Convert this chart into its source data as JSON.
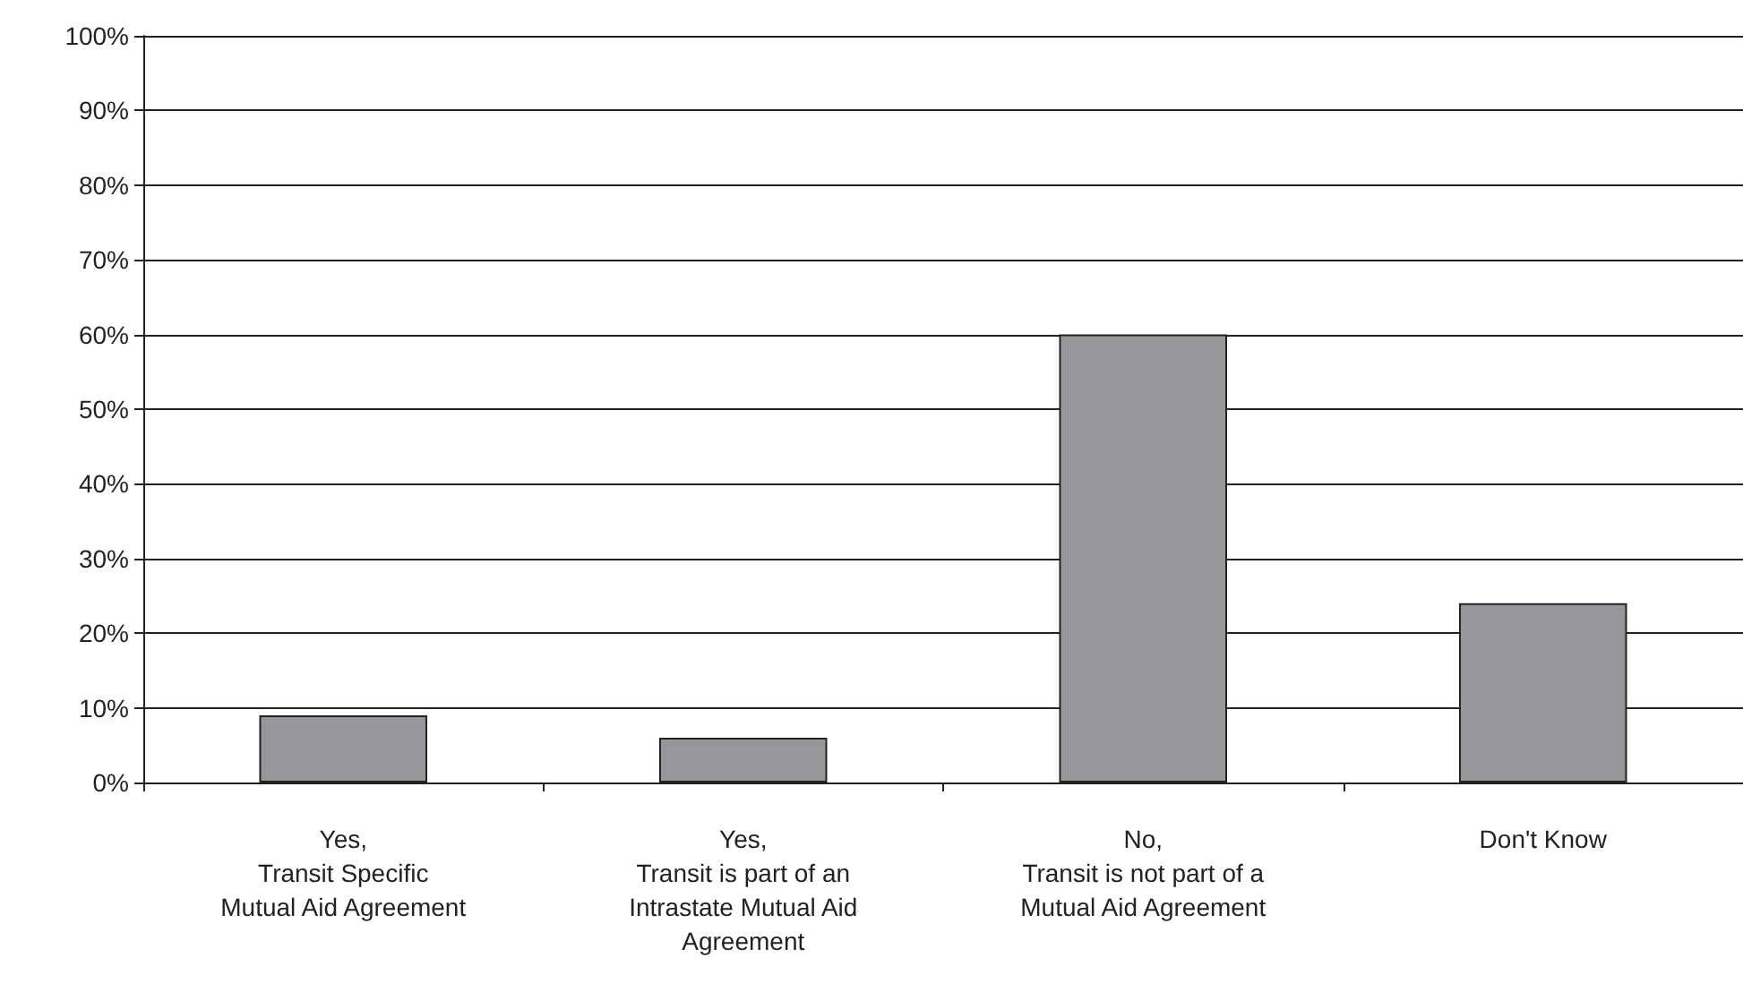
{
  "chart_data": {
    "type": "bar",
    "categories": [
      "Yes,\nTransit Specific\nMutual Aid Agreement",
      "Yes,\nTransit is part of an\nIntrastate Mutual Aid\nAgreement",
      "No,\nTransit is not part of a\nMutual Aid Agreement",
      "Don't Know"
    ],
    "values": [
      9,
      6,
      60,
      24
    ],
    "color": "#96979b",
    "ylim": [
      0,
      100
    ],
    "yticks": [
      {
        "value": 0,
        "label": "0%"
      },
      {
        "value": 10,
        "label": "10%"
      },
      {
        "value": 20,
        "label": "20%"
      },
      {
        "value": 30,
        "label": "30%"
      },
      {
        "value": 40,
        "label": "40%"
      },
      {
        "value": 50,
        "label": "50%"
      },
      {
        "value": 60,
        "label": "60%"
      },
      {
        "value": 70,
        "label": "70%"
      },
      {
        "value": 80,
        "label": "80%"
      },
      {
        "value": 90,
        "label": "90%"
      },
      {
        "value": 100,
        "label": "100%"
      }
    ],
    "grid": "y"
  }
}
